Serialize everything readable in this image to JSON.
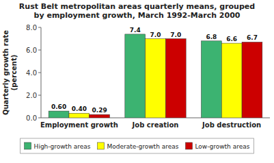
{
  "chart_data": {
    "type": "bar",
    "title": "Rust Belt metropolitan areas quarterly means, grouped\nby employment growth, March 1992-March 2000",
    "categories": [
      "Employment growth",
      "Job creation",
      "Job destruction"
    ],
    "series": [
      {
        "name": "High-growth areas",
        "color": "#3cb371",
        "values": [
          0.6,
          7.4,
          6.8
        ],
        "value_labels": [
          "0.60",
          "7.4",
          "6.8"
        ]
      },
      {
        "name": "Moderate-growth areas",
        "color": "#ffff00",
        "values": [
          0.4,
          7.0,
          6.6
        ],
        "value_labels": [
          "0.40",
          "7.0",
          "6.6"
        ]
      },
      {
        "name": "Low-growth areas",
        "color": "#cc0000",
        "values": [
          0.29,
          7.0,
          6.7
        ],
        "value_labels": [
          "0.29",
          "7.0",
          "6.7"
        ]
      }
    ],
    "ylabel": "Quarterly growth rate\n(percent)",
    "ylim": [
      0,
      8.0
    ],
    "yticks": [
      {
        "value": 0.0,
        "label": "0.0"
      },
      {
        "value": 2.0,
        "label": "2.0"
      },
      {
        "value": 4.0,
        "label": "4.0"
      },
      {
        "value": 6.0,
        "label": "6.0"
      },
      {
        "value": 8.0,
        "label": "8.0"
      }
    ],
    "data_labels": true,
    "legend": "bottom",
    "grid": false
  }
}
